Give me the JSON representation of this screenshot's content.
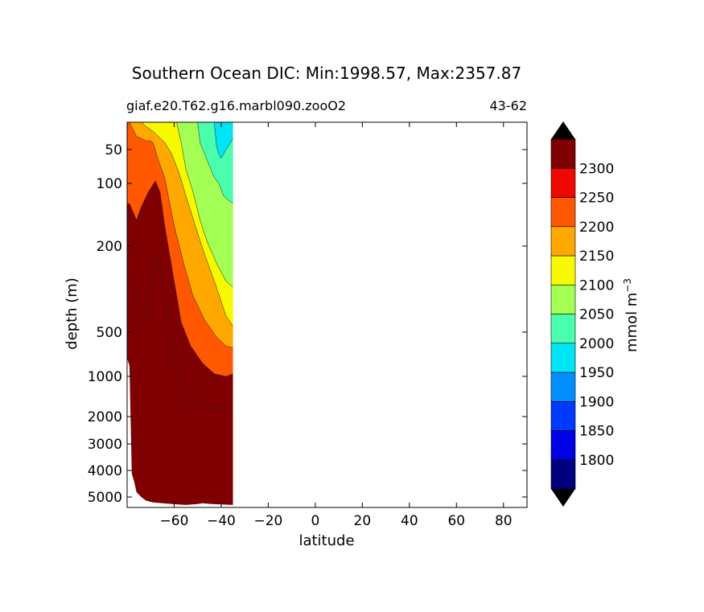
{
  "chart_data": {
    "type": "contour",
    "title": "Southern Ocean DIC: Min:1998.57, Max:2357.87",
    "subtitle_left": "giaf.e20.T62.g16.marbl090.zooO2",
    "subtitle_right": "43-62",
    "xlabel": "latitude",
    "ylabel": "depth (m)",
    "xlim": [
      -80,
      90
    ],
    "x_ticks": [
      -60,
      -40,
      -20,
      0,
      20,
      40,
      60,
      80
    ],
    "x_tick_labels": [
      "−60",
      "−40",
      "−20",
      "0",
      "20",
      "40",
      "60",
      "80"
    ],
    "y_scale": "piecewise (compressed with depth)",
    "y_ticks": [
      50,
      100,
      200,
      500,
      1000,
      2000,
      3000,
      4000,
      5000
    ],
    "y_tick_labels": [
      "50",
      "100",
      "200",
      "500",
      "1000",
      "2000",
      "3000",
      "4000",
      "5000"
    ],
    "colorbar": {
      "label": "mmol m",
      "label_superscript": "−3",
      "levels": [
        1750,
        1800,
        1850,
        1900,
        1950,
        2000,
        2050,
        2100,
        2150,
        2200,
        2250,
        2300,
        2350
      ],
      "tick_labels": [
        "1800",
        "1850",
        "1900",
        "1950",
        "2000",
        "2050",
        "2100",
        "2150",
        "2200",
        "2250",
        "2300"
      ],
      "colors": [
        "#00007f",
        "#0000e5",
        "#0039ff",
        "#008fff",
        "#00e5f6",
        "#49ffad",
        "#a3ff53",
        "#f6f900",
        "#ffa800",
        "#ff5800",
        "#ee0800",
        "#7f0000"
      ],
      "extend": "both",
      "extend_color": "#000000"
    },
    "contour_bands_deepest_lat": [
      {
        "min": 2350,
        "color": "#7f0000",
        "boundary": [
          [
            -77.5,
            300
          ],
          [
            -76,
            350
          ],
          [
            -72,
            400
          ],
          [
            -70,
            280
          ],
          [
            -69,
            230
          ],
          [
            -67,
            230
          ],
          [
            -65,
            300
          ],
          [
            -62,
            450
          ],
          [
            -60,
            700
          ],
          [
            -57,
            1200
          ],
          [
            -52,
            1550
          ],
          [
            -46,
            1700
          ],
          [
            -40,
            1680
          ],
          [
            -35,
            1650
          ]
        ]
      },
      {
        "min": 2250,
        "color": "#ee0800",
        "boundary": [
          [
            -79,
            125
          ],
          [
            -76,
            150
          ],
          [
            -74,
            130
          ],
          [
            -71,
            110
          ],
          [
            -68,
            95
          ],
          [
            -66,
            110
          ],
          [
            -64,
            160
          ],
          [
            -61,
            250
          ],
          [
            -57,
            450
          ],
          [
            -53,
            620
          ],
          [
            -48,
            810
          ],
          [
            -43,
            960
          ],
          [
            -38,
            1000
          ],
          [
            -35,
            960
          ]
        ]
      },
      {
        "min": 2200,
        "color": "#ff5800",
        "boundary": [
          [
            -79,
            21
          ],
          [
            -76,
            33
          ],
          [
            -74,
            35
          ],
          [
            -72,
            38
          ],
          [
            -70,
            38
          ],
          [
            -69,
            40
          ],
          [
            -67,
            60
          ],
          [
            -64,
            90
          ],
          [
            -60,
            160
          ],
          [
            -56,
            240
          ],
          [
            -52,
            340
          ],
          [
            -47,
            440
          ],
          [
            -42,
            540
          ],
          [
            -38,
            620
          ],
          [
            -35,
            640
          ]
        ]
      },
      {
        "min": 2150,
        "color": "#ffa800",
        "boundary": [
          [
            -74,
            21
          ],
          [
            -72,
            24
          ],
          [
            -69,
            28
          ],
          [
            -64,
            40
          ],
          [
            -61,
            55
          ],
          [
            -58,
            80
          ],
          [
            -55,
            115
          ],
          [
            -51,
            160
          ],
          [
            -47,
            220
          ],
          [
            -42,
            310
          ],
          [
            -38,
            420
          ],
          [
            -35,
            470
          ]
        ]
      },
      {
        "min": 2100,
        "color": "#f6f900",
        "boundary": [
          [
            -59,
            21
          ],
          [
            -57,
            40
          ],
          [
            -55,
            75
          ],
          [
            -52,
            110
          ],
          [
            -49,
            150
          ],
          [
            -46,
            190
          ],
          [
            -42,
            240
          ],
          [
            -38,
            290
          ],
          [
            -35,
            310
          ]
        ]
      },
      {
        "min": 2050,
        "color": "#a3ff53",
        "boundary": [
          [
            -50,
            21
          ],
          [
            -49,
            40
          ],
          [
            -47,
            55
          ],
          [
            -45,
            70
          ],
          [
            -43,
            88
          ],
          [
            -41,
            100
          ],
          [
            -39,
            115
          ],
          [
            -37,
            120
          ],
          [
            -35,
            125
          ]
        ]
      },
      {
        "min": 2000,
        "color": "#49ffad",
        "boundary": [
          [
            -43,
            21
          ],
          [
            -42,
            45
          ],
          [
            -41,
            55
          ],
          [
            -40,
            60
          ],
          [
            -39,
            55
          ],
          [
            -38,
            50
          ],
          [
            -37,
            45
          ],
          [
            -36,
            40
          ],
          [
            -35,
            35
          ]
        ]
      }
    ],
    "seafloor_lat_depth": [
      [
        -80,
        750
      ],
      [
        -79,
        850
      ],
      [
        -78,
        4100
      ],
      [
        -77,
        4400
      ],
      [
        -76,
        4800
      ],
      [
        -74,
        5000
      ],
      [
        -72,
        5200
      ],
      [
        -69,
        5300
      ],
      [
        -65,
        5350
      ],
      [
        -61,
        5400
      ],
      [
        -55,
        5450
      ],
      [
        -50,
        5400
      ],
      [
        -48,
        5350
      ],
      [
        -44,
        5400
      ],
      [
        -35,
        5450
      ]
    ]
  }
}
